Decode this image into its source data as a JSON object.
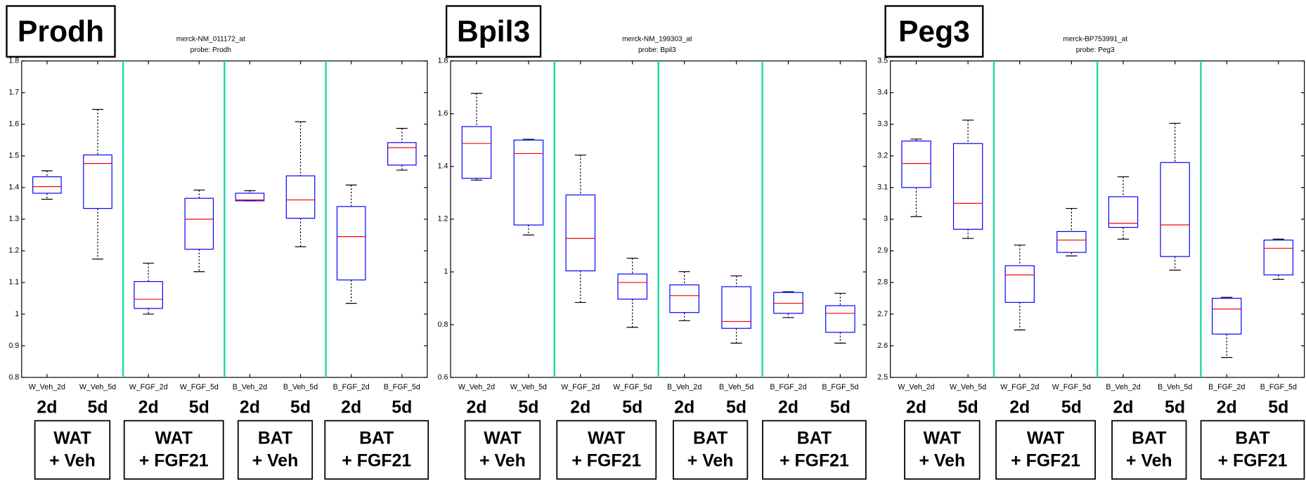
{
  "chart_data": [
    {
      "type": "box",
      "title": "Prodh",
      "subtitle": [
        "merck-NM_011172_at",
        "probe: Prodh"
      ],
      "categories": [
        "W_Veh_2d",
        "W_Veh_5d",
        "W_FGF_2d",
        "W_FGF_5d",
        "B_Veh_2d",
        "B_Veh_5d",
        "B_FGF_2d",
        "B_FGF_5d"
      ],
      "min": [
        1.363,
        1.174,
        1.0,
        1.134,
        1.358,
        1.213,
        1.034,
        1.455
      ],
      "q1": [
        1.382,
        1.334,
        1.018,
        1.205,
        1.358,
        1.303,
        1.108,
        1.471
      ],
      "median": [
        1.403,
        1.476,
        1.047,
        1.3,
        1.361,
        1.361,
        1.245,
        1.526
      ],
      "q3": [
        1.434,
        1.503,
        1.103,
        1.366,
        1.382,
        1.437,
        1.34,
        1.542
      ],
      "max": [
        1.453,
        1.647,
        1.161,
        1.392,
        1.39,
        1.608,
        1.408,
        1.587
      ],
      "ylim": [
        0.8,
        1.8
      ],
      "yticks": [
        0.8,
        0.9,
        1,
        1.1,
        1.2,
        1.3,
        1.4,
        1.5,
        1.6,
        1.7,
        1.8
      ],
      "day_labels": [
        "2d",
        "5d",
        "2d",
        "5d",
        "2d",
        "5d",
        "2d",
        "5d"
      ],
      "groups": [
        [
          "WAT",
          "+ Veh"
        ],
        [
          "WAT",
          "+ FGF21"
        ],
        [
          "BAT",
          "+ Veh"
        ],
        [
          "BAT",
          "+ FGF21"
        ]
      ],
      "box_color": "#0000ff",
      "median_color": "#ff0000",
      "whisker_color": "#000000",
      "separator_color": "#1fd6a4"
    },
    {
      "type": "box",
      "title": "Bpil3",
      "subtitle": [
        "merck-NM_199303_at",
        "probe: Bpil3"
      ],
      "categories": [
        "W_Veh_2d",
        "W_Veh_5d",
        "W_FGF_2d",
        "W_FGF_5d",
        "B_Veh_2d",
        "B_Veh_5d",
        "B_FGF_2d",
        "B_FGF_5d"
      ],
      "min": [
        1.348,
        1.14,
        0.884,
        0.79,
        0.815,
        0.73,
        0.827,
        0.73
      ],
      "q1": [
        1.355,
        1.178,
        1.004,
        0.897,
        0.846,
        0.786,
        0.843,
        0.771
      ],
      "median": [
        1.487,
        1.449,
        1.127,
        0.96,
        0.91,
        0.812,
        0.881,
        0.843
      ],
      "q3": [
        1.551,
        1.5,
        1.292,
        0.992,
        0.951,
        0.944,
        0.922,
        0.872
      ],
      "max": [
        1.677,
        1.503,
        1.443,
        1.052,
        1.001,
        0.985,
        0.925,
        0.919
      ],
      "ylim": [
        0.6,
        1.8
      ],
      "yticks": [
        0.6,
        0.8,
        1,
        1.2,
        1.4,
        1.6,
        1.8
      ],
      "day_labels": [
        "2d",
        "5d",
        "2d",
        "5d",
        "2d",
        "5d",
        "2d",
        "5d"
      ],
      "groups": [
        [
          "WAT",
          "+ Veh"
        ],
        [
          "WAT",
          "+ FGF21"
        ],
        [
          "BAT",
          "+ Veh"
        ],
        [
          "BAT",
          "+ FGF21"
        ]
      ],
      "box_color": "#0000ff",
      "median_color": "#ff0000",
      "whisker_color": "#000000",
      "separator_color": "#1fd6a4"
    },
    {
      "type": "box",
      "title": "Peg3",
      "subtitle": [
        "merck-BP753991_at",
        "probe: Peg3"
      ],
      "categories": [
        "W_Veh_2d",
        "W_Veh_5d",
        "W_FGF_2d",
        "W_FGF_5d",
        "B_Veh_2d",
        "B_Veh_5d",
        "B_FGF_2d",
        "B_FGF_5d"
      ],
      "min": [
        3.008,
        2.939,
        2.65,
        2.884,
        2.937,
        2.839,
        2.563,
        2.81
      ],
      "q1": [
        3.1,
        2.968,
        2.737,
        2.895,
        2.974,
        2.882,
        2.637,
        2.824
      ],
      "median": [
        3.176,
        3.05,
        2.824,
        2.934,
        2.987,
        2.982,
        2.716,
        2.908
      ],
      "q3": [
        3.247,
        3.239,
        2.853,
        2.961,
        3.071,
        3.179,
        2.75,
        2.934
      ],
      "max": [
        3.253,
        3.313,
        2.918,
        3.034,
        3.134,
        3.303,
        2.753,
        2.937
      ],
      "ylim": [
        2.5,
        3.5
      ],
      "yticks": [
        2.5,
        2.6,
        2.7,
        2.8,
        2.9,
        3,
        3.1,
        3.2,
        3.3,
        3.4,
        3.5
      ],
      "day_labels": [
        "2d",
        "5d",
        "2d",
        "5d",
        "2d",
        "5d",
        "2d",
        "5d"
      ],
      "groups": [
        [
          "WAT",
          "+ Veh"
        ],
        [
          "WAT",
          "+ FGF21"
        ],
        [
          "BAT",
          "+ Veh"
        ],
        [
          "BAT",
          "+ FGF21"
        ]
      ],
      "box_color": "#0000ff",
      "median_color": "#ff0000",
      "whisker_color": "#000000",
      "separator_color": "#1fd6a4"
    }
  ]
}
